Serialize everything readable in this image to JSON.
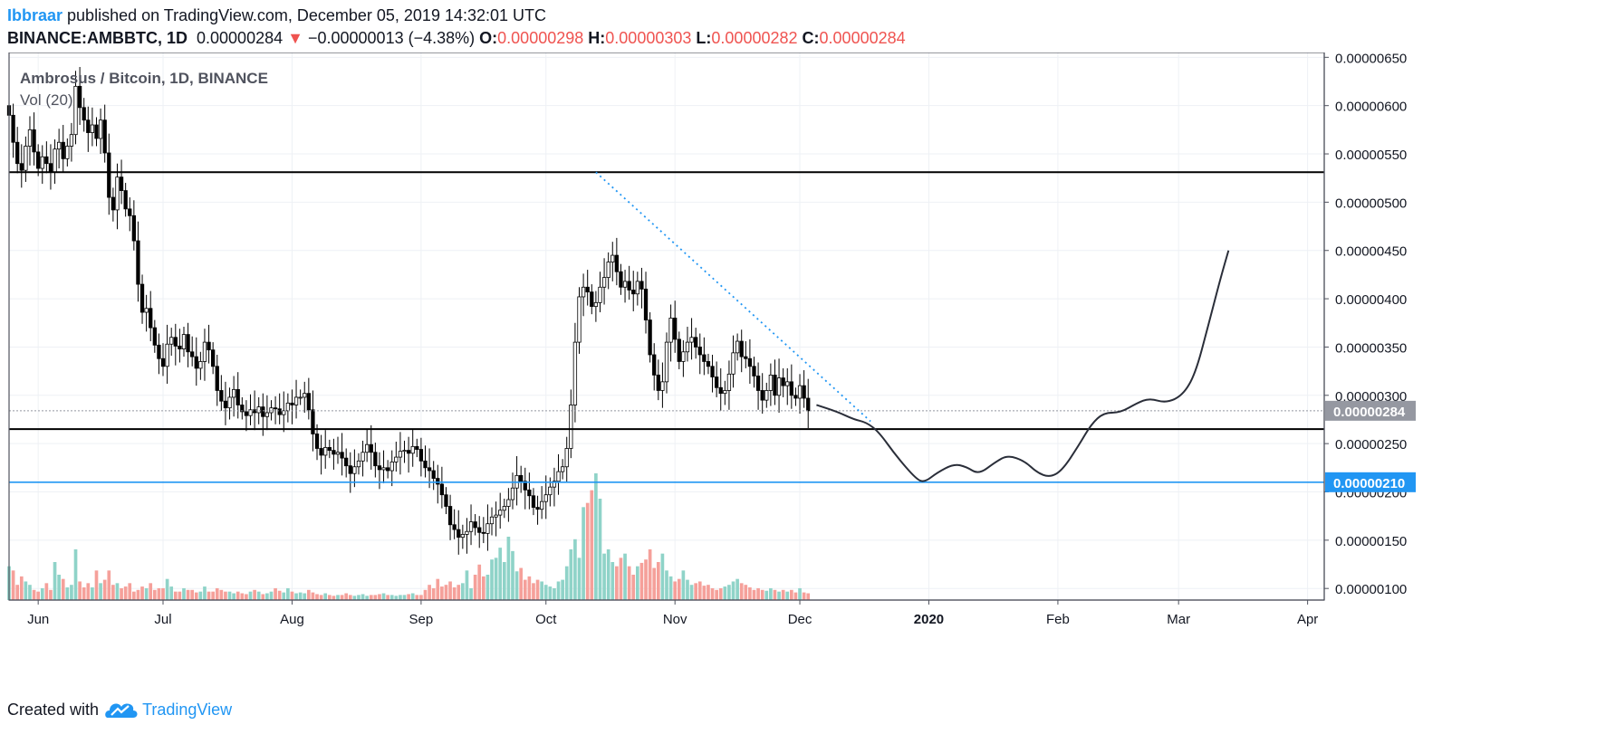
{
  "header": {
    "author": "Ibbraar",
    "published_text": " published on TradingView.com, December 05, 2019 14:32:01 UTC",
    "symbol": "BINANCE:AMBBTC, 1D",
    "last": "0.00000284",
    "change_arrow": "▼",
    "change": "−0.00000013 (−4.38%)",
    "open_label": "O:",
    "open": "0.00000298",
    "high_label": "H:",
    "high": "0.00000303",
    "low_label": "L:",
    "low": "0.00000282",
    "close_label": "C:",
    "close": "0.00000284"
  },
  "footer": {
    "created_with": "Created with",
    "brand": "TradingView"
  },
  "colors": {
    "up": "#26a69a",
    "down": "#ef5350",
    "vol_up": "#8fd3c8",
    "vol_down": "#f5a09a",
    "hline": "#000000",
    "support_blue": "#2196f3",
    "grid": "#eef1f5",
    "brand": "#2196f3"
  },
  "chart_data": {
    "type": "candlestick",
    "title": "Ambrosus / Bitcoin, 1D, BINANCE",
    "indicator_label": "Vol (20)",
    "y_ticks": [
      "0.00000100",
      "0.00000150",
      "0.00000200",
      "0.00000250",
      "0.00000300",
      "0.00000350",
      "0.00000400",
      "0.00000450",
      "0.00000500",
      "0.00000550",
      "0.00000600",
      "0.00000650"
    ],
    "ylim": [
      8.8e-07,
      6.55e-06
    ],
    "x_ticks": [
      "Jun",
      "Jul",
      "Aug",
      "Sep",
      "Oct",
      "Nov",
      "Dec",
      "2020",
      "Feb",
      "Mar",
      "Apr"
    ],
    "x_tick_dates": [
      "2019-06-01",
      "2019-07-01",
      "2019-08-01",
      "2019-09-01",
      "2019-10-01",
      "2019-11-01",
      "2019-12-01",
      "2020-01-01",
      "2020-02-01",
      "2020-03-01",
      "2020-04-01"
    ],
    "xlim": [
      "2019-05-25",
      "2020-04-05"
    ],
    "last_price_label": "0.00000284",
    "support_label": "0.00000210",
    "horizontal_lines": [
      {
        "name": "resistance",
        "value": 5.31e-06,
        "color": "#000000"
      },
      {
        "name": "support-upper",
        "value": 2.65e-06,
        "color": "#000000"
      },
      {
        "name": "support-lower",
        "value": 2.1e-06,
        "color": "#2196f3"
      },
      {
        "name": "last-price",
        "value": 2.84e-06,
        "color": "#9598a1"
      }
    ],
    "trendline": {
      "start": [
        "2019-10-13",
        5.31e-06
      ],
      "end": [
        "2019-12-18",
        2.73e-06
      ]
    },
    "projection": [
      [
        "2019-12-05",
        2.9e-06
      ],
      [
        "2019-12-10",
        2.83e-06
      ],
      [
        "2019-12-14",
        2.75e-06
      ],
      [
        "2019-12-17",
        2.72e-06
      ],
      [
        "2019-12-20",
        2.62e-06
      ],
      [
        "2019-12-24",
        2.38e-06
      ],
      [
        "2019-12-29",
        2.13e-06
      ],
      [
        "2019-12-31",
        2.1e-06
      ],
      [
        "2020-01-03",
        2.2e-06
      ],
      [
        "2020-01-07",
        2.29e-06
      ],
      [
        "2020-01-10",
        2.26e-06
      ],
      [
        "2020-01-13",
        2.18e-06
      ],
      [
        "2020-01-17",
        2.31e-06
      ],
      [
        "2020-01-20",
        2.38e-06
      ],
      [
        "2020-01-24",
        2.32e-06
      ],
      [
        "2020-01-27",
        2.2e-06
      ],
      [
        "2020-01-30",
        2.15e-06
      ],
      [
        "2020-02-02",
        2.22e-06
      ],
      [
        "2020-02-06",
        2.48e-06
      ],
      [
        "2020-02-09",
        2.7e-06
      ],
      [
        "2020-02-12",
        2.82e-06
      ],
      [
        "2020-02-16",
        2.82e-06
      ],
      [
        "2020-02-20",
        2.92e-06
      ],
      [
        "2020-02-23",
        2.97e-06
      ],
      [
        "2020-02-27",
        2.92e-06
      ],
      [
        "2020-03-02",
        3e-06
      ],
      [
        "2020-03-05",
        3.22e-06
      ],
      [
        "2020-03-08",
        3.7e-06
      ],
      [
        "2020-03-11",
        4.2e-06
      ],
      [
        "2020-03-13",
        4.5e-06
      ]
    ],
    "candles": {
      "start": "2019-05-25",
      "close": [
        5.9,
        5.62,
        5.4,
        5.33,
        5.58,
        5.75,
        5.52,
        5.35,
        5.47,
        5.4,
        5.31,
        5.55,
        5.62,
        5.45,
        5.58,
        5.7,
        6.2,
        5.98,
        5.85,
        5.72,
        5.8,
        5.66,
        5.85,
        5.51,
        5.05,
        4.92,
        5.26,
        5.12,
        4.93,
        4.86,
        4.6,
        4.15,
        3.86,
        3.9,
        3.7,
        3.52,
        3.38,
        3.3,
        3.53,
        3.6,
        3.51,
        3.48,
        3.63,
        3.45,
        3.4,
        3.28,
        3.35,
        3.55,
        3.47,
        3.3,
        3.05,
        2.94,
        2.87,
        2.98,
        3.06,
        2.9,
        2.83,
        2.79,
        2.85,
        2.82,
        2.88,
        2.78,
        2.82,
        2.87,
        2.86,
        2.8,
        2.84,
        2.92,
        2.9,
        2.98,
        2.98,
        3.02,
        2.85,
        2.6,
        2.45,
        2.38,
        2.46,
        2.43,
        2.39,
        2.41,
        2.35,
        2.27,
        2.19,
        2.26,
        2.32,
        2.41,
        2.49,
        2.41,
        2.27,
        2.23,
        2.25,
        2.22,
        2.31,
        2.36,
        2.42,
        2.43,
        2.4,
        2.47,
        2.44,
        2.32,
        2.25,
        2.22,
        2.14,
        2.08,
        1.97,
        1.85,
        1.66,
        1.61,
        1.53,
        1.56,
        1.59,
        1.69,
        1.63,
        1.58,
        1.57,
        1.67,
        1.74,
        1.76,
        1.81,
        1.85,
        1.92,
        2.04,
        2.17,
        2.11,
        2.02,
        1.96,
        1.84,
        1.82,
        1.9,
        1.97,
        2.05,
        2.11,
        2.21,
        2.26,
        2.45,
        2.9,
        3.55,
        4.02,
        4.12,
        4.07,
        3.92,
        3.96,
        4.12,
        4.22,
        4.38,
        4.45,
        4.28,
        4.12,
        4.18,
        4.09,
        4.05,
        4.18,
        4.1,
        3.78,
        3.42,
        3.21,
        3.05,
        3.14,
        3.55,
        3.8,
        3.58,
        3.35,
        3.45,
        3.55,
        3.6,
        3.5,
        3.42,
        3.35,
        3.3,
        3.19,
        3.08,
        3.02,
        3.05,
        3.22,
        3.44,
        3.56,
        3.4,
        3.38,
        3.3,
        3.2,
        3.05,
        2.95,
        3.05,
        3.21,
        3.0,
        3.18,
        3.1,
        3.14,
        3.0,
        2.97,
        3.1,
        2.97,
        2.84
      ]
    },
    "volume": {
      "start": "2019-05-25",
      "up_when_close_rises": true,
      "values": [
        40,
        35,
        18,
        28,
        22,
        18,
        12,
        10,
        14,
        20,
        12,
        45,
        30,
        25,
        15,
        18,
        60,
        22,
        15,
        20,
        15,
        35,
        20,
        24,
        35,
        18,
        20,
        14,
        16,
        20,
        10,
        12,
        16,
        14,
        20,
        12,
        14,
        14,
        25,
        16,
        10,
        10,
        14,
        12,
        12,
        9,
        10,
        16,
        10,
        10,
        14,
        12,
        10,
        10,
        8,
        10,
        8,
        7,
        10,
        12,
        10,
        7,
        8,
        10,
        14,
        11,
        9,
        14,
        10,
        8,
        9,
        8,
        12,
        9,
        7,
        6,
        8,
        6,
        5,
        6,
        6,
        8,
        6,
        5,
        6,
        7,
        5,
        6,
        6,
        7,
        8,
        6,
        6,
        5,
        6,
        6,
        7,
        8,
        6,
        6,
        12,
        18,
        14,
        25,
        16,
        18,
        22,
        15,
        18,
        20,
        35,
        14,
        30,
        42,
        28,
        30,
        48,
        50,
        62,
        45,
        75,
        58,
        34,
        38,
        24,
        28,
        20,
        24,
        22,
        18,
        16,
        14,
        22,
        24,
        40,
        60,
        72,
        50,
        110,
        115,
        130,
        150,
        120,
        55,
        60,
        45,
        40,
        50,
        55,
        40,
        30,
        40,
        44,
        48,
        60,
        38,
        45,
        55,
        35,
        28,
        22,
        25,
        35,
        24,
        18,
        20,
        22,
        17,
        18,
        14,
        12,
        14,
        16,
        18,
        22,
        25,
        20,
        18,
        15,
        12,
        14,
        12,
        11,
        14,
        12,
        10,
        12,
        10,
        12,
        9,
        14,
        9,
        8
      ]
    }
  }
}
